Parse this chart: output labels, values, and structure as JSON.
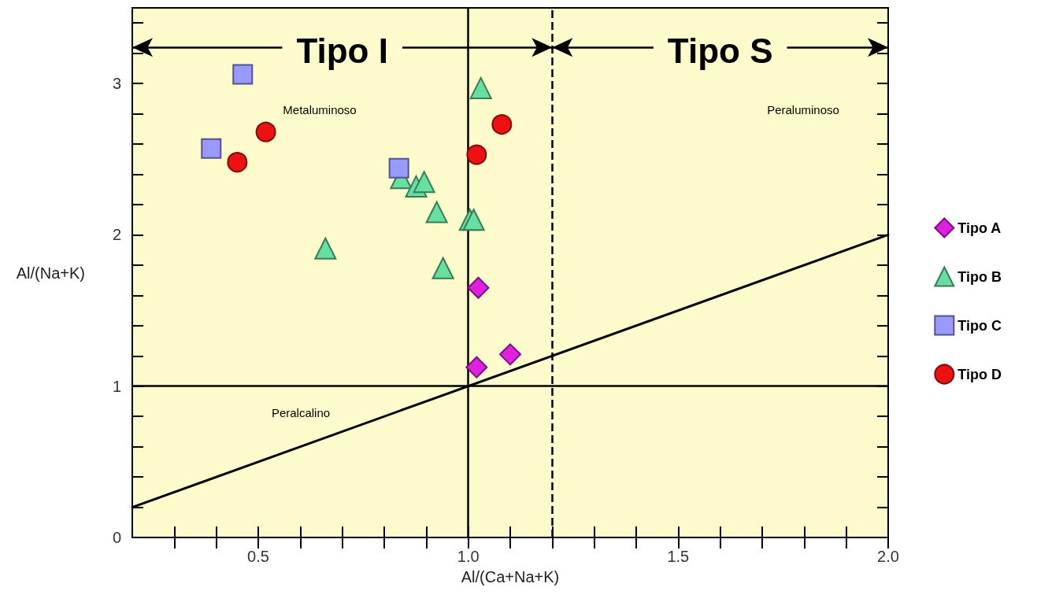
{
  "chart_data": {
    "type": "scatter",
    "xlabel": "Al/(Ca+Na+K)",
    "ylabel": "Al/(Na+K)",
    "xlim": [
      0.2,
      2.0
    ],
    "ylim": [
      0,
      3.5
    ],
    "xticks": [
      {
        "value": 0.3,
        "label": null
      },
      {
        "value": 0.4,
        "label": null
      },
      0.5,
      {
        "value": 0.6,
        "label": null
      },
      {
        "value": 0.7,
        "label": null
      },
      {
        "value": 0.8,
        "label": null
      },
      {
        "value": 0.9,
        "label": null
      },
      {
        "value": 1.0,
        "label": "1.0"
      },
      {
        "value": 1.1,
        "label": null
      },
      {
        "value": 1.2,
        "label": null
      },
      {
        "value": 1.3,
        "label": null
      },
      {
        "value": 1.4,
        "label": null
      },
      1.5,
      {
        "value": 1.6,
        "label": null
      },
      {
        "value": 1.7,
        "label": null
      },
      {
        "value": 1.8,
        "label": null
      },
      {
        "value": 1.9,
        "label": null
      },
      {
        "value": 2.0,
        "label": "2.0"
      }
    ],
    "yticks": [
      0,
      {
        "value": 0.2,
        "label": null
      },
      {
        "value": 0.4,
        "label": null
      },
      {
        "value": 0.6,
        "label": null
      },
      {
        "value": 0.8,
        "label": null
      },
      1,
      {
        "value": 1.2,
        "label": null
      },
      {
        "value": 1.4,
        "label": null
      },
      {
        "value": 1.6,
        "label": null
      },
      {
        "value": 1.8,
        "label": null
      },
      2,
      {
        "value": 2.2,
        "label": null
      },
      {
        "value": 2.4,
        "label": null
      },
      {
        "value": 2.6,
        "label": null
      },
      {
        "value": 2.8,
        "label": null
      },
      3,
      {
        "value": 3.2,
        "label": null
      },
      {
        "value": 3.4,
        "label": null
      }
    ],
    "grid": false,
    "legend": "right",
    "series": [
      {
        "name": "Tipo A",
        "color": "#e020e0",
        "marker": "diamond",
        "x": [
          1.024,
          1.02,
          1.1
        ],
        "values": [
          1.65,
          1.125,
          1.21
        ]
      },
      {
        "name": "Tipo B",
        "color": "#66e0a0",
        "marker": "triangle",
        "x": [
          1.03,
          0.66,
          0.84,
          0.876,
          0.895,
          0.925,
          0.94,
          1.004,
          1.013
        ],
        "values": [
          2.97,
          1.91,
          2.375,
          2.32,
          2.35,
          2.15,
          1.78,
          2.1,
          2.1
        ]
      },
      {
        "name": "Tipo C",
        "color": "#9999ff",
        "marker": "square",
        "x": [
          0.463,
          0.388,
          0.835
        ],
        "values": [
          3.06,
          2.57,
          2.44
        ]
      },
      {
        "name": "Tipo D",
        "color": "#ee1111",
        "marker": "circle",
        "x": [
          0.518,
          0.45,
          1.02,
          1.08
        ],
        "values": [
          2.68,
          2.48,
          2.53,
          2.73
        ]
      },
      {
        "type": "line",
        "color": "#000000",
        "marker": "none",
        "x": [
          0.2,
          2.0
        ],
        "values": [
          0.2,
          2.0
        ]
      }
    ],
    "ref_lines": [
      {
        "axis": "y",
        "value": 1,
        "color": "#000000",
        "line_style": "solid"
      },
      {
        "axis": "x",
        "value": 1.0,
        "color": "#000000",
        "line_style": "solid"
      },
      {
        "axis": "x",
        "value": 1.2,
        "color": "#000000",
        "line_style": "dashed"
      }
    ],
    "annotations": [
      "Metaluminoso",
      "Peraluminoso",
      "Peralcalino",
      "Tipo I",
      "Tipo S"
    ]
  }
}
